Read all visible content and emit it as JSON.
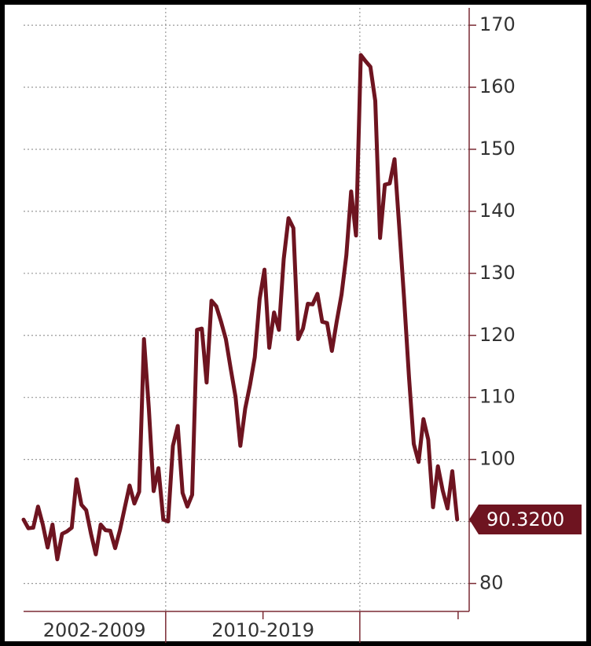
{
  "chart_data": {
    "type": "line",
    "series": [
      {
        "name": null,
        "color": "#6e1420",
        "values": [
          90.3,
          88.9,
          89.0,
          92.4,
          89.5,
          85.8,
          89.5,
          83.9,
          88.0,
          88.4,
          89.0,
          96.8,
          92.7,
          91.8,
          88.0,
          84.7,
          89.5,
          88.6,
          88.5,
          85.7,
          88.6,
          92.2,
          95.8,
          92.9,
          94.8,
          119.4,
          108.2,
          94.9,
          98.6,
          90.3,
          90.0,
          102.2,
          105.4,
          94.6,
          92.4,
          94.3,
          120.9,
          121.1,
          112.4,
          125.6,
          124.7,
          122.2,
          119.4,
          114.6,
          110.1,
          102.2,
          108.2,
          112.0,
          116.5,
          125.9,
          130.6,
          118.0,
          123.7,
          120.9,
          132.3,
          138.9,
          137.3,
          119.4,
          121.1,
          125.1,
          125.0,
          126.7,
          122.2,
          122.0,
          117.5,
          122.2,
          126.6,
          132.9,
          143.2,
          136.1,
          165.2,
          164.2,
          163.3,
          157.8,
          135.7,
          144.3,
          144.5,
          148.4,
          137.3,
          125.9,
          113.3,
          102.5,
          99.6,
          106.5,
          103.2,
          92.3,
          98.9,
          95.0,
          92.1,
          98.1,
          90.32
        ]
      }
    ],
    "last_value_label": "90.3200",
    "xlim": [
      0,
      92.5
    ],
    "xticks": [
      29.5,
      69.8
    ],
    "xminor_ticks": [
      49.7,
      90.2
    ],
    "x_labels": [
      {
        "value": 14.7,
        "label": "2002-2009"
      },
      {
        "value": 49.7,
        "label": "2010-2019"
      }
    ],
    "ylim": [
      75.5,
      172.8
    ],
    "yticks": [
      80,
      90,
      100,
      110,
      120,
      130,
      140,
      150,
      160,
      170
    ],
    "y_axis_side": "right",
    "grid": true
  }
}
